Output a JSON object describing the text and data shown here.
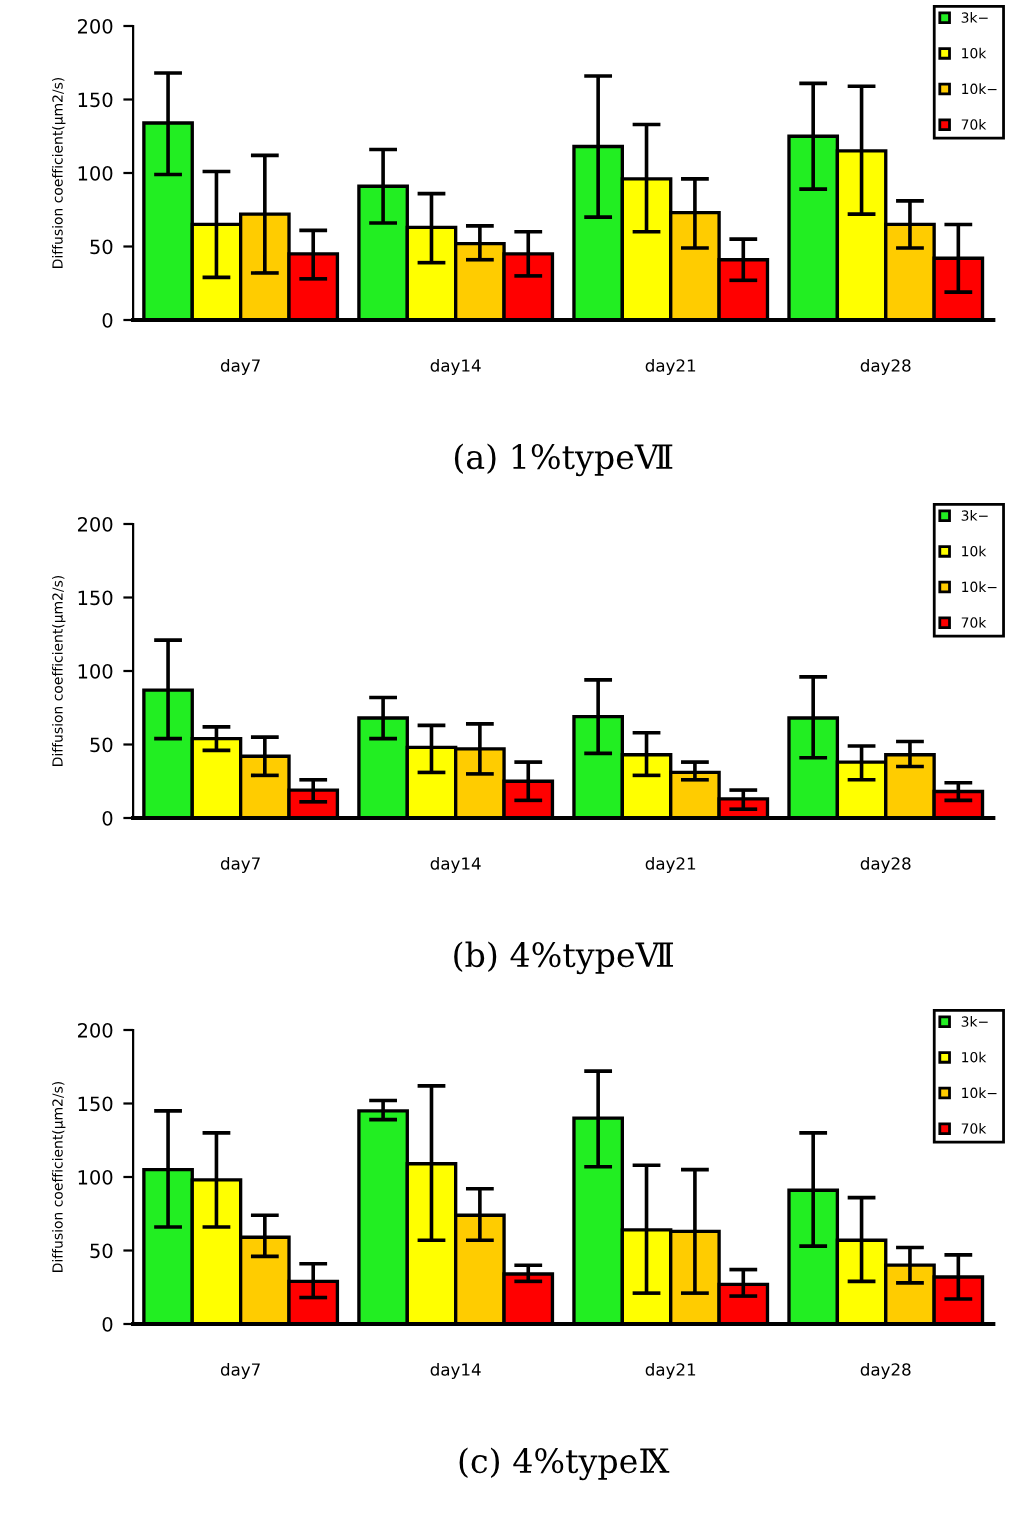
{
  "chart_data": [
    {
      "type": "bar",
      "title": "(a) 1%typeⅦ",
      "ylabel": "Diffusion coefficient(μm2/s)",
      "categories": [
        "day7",
        "day14",
        "day21",
        "day28"
      ],
      "ylim": [
        0,
        200
      ],
      "yticks": [
        0,
        50,
        100,
        150,
        200
      ],
      "legend": "top right",
      "grid": false,
      "series": [
        {
          "name": "3k−",
          "color": "#22ee22",
          "values": [
            134,
            91,
            118,
            125
          ],
          "errors": [
            [
              99,
              168
            ],
            [
              66,
              116
            ],
            [
              70,
              166
            ],
            [
              89,
              161
            ]
          ]
        },
        {
          "name": "10k",
          "color": "#ffff00",
          "values": [
            65,
            63,
            96,
            115
          ],
          "errors": [
            [
              29,
              101
            ],
            [
              39,
              86
            ],
            [
              60,
              133
            ],
            [
              72,
              159
            ]
          ]
        },
        {
          "name": "10k−",
          "color": "#ffcc00",
          "values": [
            72,
            52,
            73,
            65
          ],
          "errors": [
            [
              32,
              112
            ],
            [
              41,
              64
            ],
            [
              49,
              96
            ],
            [
              49,
              81
            ]
          ]
        },
        {
          "name": "70k",
          "color": "#ff0000",
          "values": [
            45,
            45,
            41,
            42
          ],
          "errors": [
            [
              28,
              61
            ],
            [
              30,
              60
            ],
            [
              27,
              55
            ],
            [
              19,
              65
            ]
          ]
        }
      ]
    },
    {
      "type": "bar",
      "title": "(b) 4%typeⅦ",
      "ylabel": "Diffusion coefficient(μm2/s)",
      "categories": [
        "day7",
        "day14",
        "day21",
        "day28"
      ],
      "ylim": [
        0,
        200
      ],
      "yticks": [
        0,
        50,
        100,
        150,
        200
      ],
      "legend": "top right",
      "grid": false,
      "series": [
        {
          "name": "3k−",
          "color": "#22ee22",
          "values": [
            87,
            68,
            69,
            68
          ],
          "errors": [
            [
              54,
              121
            ],
            [
              54,
              82
            ],
            [
              44,
              94
            ],
            [
              41,
              96
            ]
          ]
        },
        {
          "name": "10k",
          "color": "#ffff00",
          "values": [
            54,
            48,
            43,
            38
          ],
          "errors": [
            [
              46,
              62
            ],
            [
              31,
              63
            ],
            [
              29,
              58
            ],
            [
              26,
              49
            ]
          ]
        },
        {
          "name": "10k−",
          "color": "#ffcc00",
          "values": [
            42,
            47,
            31,
            43
          ],
          "errors": [
            [
              29,
              55
            ],
            [
              30,
              64
            ],
            [
              26,
              38
            ],
            [
              35,
              52
            ]
          ]
        },
        {
          "name": "70k",
          "color": "#ff0000",
          "values": [
            19,
            25,
            13,
            18
          ],
          "errors": [
            [
              11,
              26
            ],
            [
              12,
              38
            ],
            [
              6,
              19
            ],
            [
              12,
              24
            ]
          ]
        }
      ]
    },
    {
      "type": "bar",
      "title": "(c) 4%typeⅨ",
      "ylabel": "Diffusion coefficient(μm2/s)",
      "categories": [
        "day7",
        "day14",
        "day21",
        "day28"
      ],
      "ylim": [
        0,
        200
      ],
      "yticks": [
        0,
        50,
        100,
        150,
        200
      ],
      "legend": "top right",
      "grid": false,
      "series": [
        {
          "name": "3k−",
          "color": "#22ee22",
          "values": [
            105,
            145,
            140,
            91
          ],
          "errors": [
            [
              66,
              145
            ],
            [
              139,
              152
            ],
            [
              107,
              172
            ],
            [
              53,
              130
            ]
          ]
        },
        {
          "name": "10k",
          "color": "#ffff00",
          "values": [
            98,
            109,
            64,
            57
          ],
          "errors": [
            [
              66,
              130
            ],
            [
              57,
              162
            ],
            [
              21,
              108
            ],
            [
              29,
              86
            ]
          ]
        },
        {
          "name": "10k−",
          "color": "#ffcc00",
          "values": [
            59,
            74,
            63,
            40
          ],
          "errors": [
            [
              46,
              74
            ],
            [
              57,
              92
            ],
            [
              21,
              105
            ],
            [
              28,
              52
            ]
          ]
        },
        {
          "name": "70k",
          "color": "#ff0000",
          "values": [
            29,
            34,
            27,
            32
          ],
          "errors": [
            [
              18,
              41
            ],
            [
              29,
              40
            ],
            [
              19,
              37
            ],
            [
              17,
              47
            ]
          ]
        }
      ]
    }
  ]
}
